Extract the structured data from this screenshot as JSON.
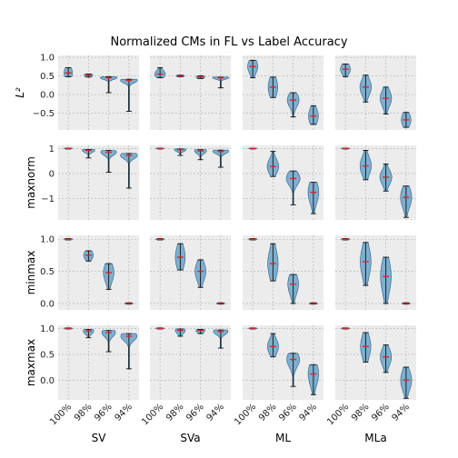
{
  "chart_data": {
    "type": "violin",
    "title": "Normalized CMs in FL vs Label Accuracy",
    "columns": [
      "SV",
      "SVa",
      "ML",
      "MLa"
    ],
    "categories": [
      "100%",
      "98%",
      "96%",
      "94%"
    ],
    "colors": {
      "violin_fill": "#5b9bc5",
      "violin_edge": "#2b5f86",
      "whisker": "#111111",
      "median": "#d62728",
      "panel_bg": "#ececec",
      "grid": "#b0b0b0"
    },
    "grid": true,
    "rows": [
      {
        "ylabel": "L²",
        "ylim": [
          -0.95,
          1.05
        ],
        "yticks": [
          1.0,
          0.5,
          0.0,
          -0.5
        ],
        "yticklabels": [
          "1.0",
          "0.5",
          "0.0",
          "−0.5"
        ],
        "panels": [
          [
            {
              "med": 0.58,
              "lo": 0.5,
              "hi": 0.72,
              "wmin": 0.48,
              "wmax": 0.72
            },
            {
              "med": 0.52,
              "lo": 0.48,
              "hi": 0.55,
              "wmin": 0.47,
              "wmax": 0.55
            },
            {
              "med": 0.45,
              "lo": 0.42,
              "hi": 0.48,
              "wmin": 0.05,
              "wmax": 0.48
            },
            {
              "med": 0.38,
              "lo": 0.35,
              "hi": 0.41,
              "wmin": -0.45,
              "wmax": 0.41
            }
          ],
          [
            {
              "med": 0.55,
              "lo": 0.48,
              "hi": 0.62,
              "wmin": 0.45,
              "wmax": 0.72
            },
            {
              "med": 0.5,
              "lo": 0.48,
              "hi": 0.52,
              "wmin": 0.48,
              "wmax": 0.52
            },
            {
              "med": 0.47,
              "lo": 0.44,
              "hi": 0.5,
              "wmin": 0.43,
              "wmax": 0.5
            },
            {
              "med": 0.45,
              "lo": 0.42,
              "hi": 0.47,
              "wmin": 0.18,
              "wmax": 0.47
            }
          ],
          [
            {
              "med": 0.75,
              "lo": 0.62,
              "hi": 0.88,
              "wmin": 0.45,
              "wmax": 0.92
            },
            {
              "med": 0.2,
              "lo": 0.05,
              "hi": 0.4,
              "wmin": -0.08,
              "wmax": 0.47
            },
            {
              "med": -0.15,
              "lo": -0.3,
              "hi": -0.05,
              "wmin": -0.6,
              "wmax": 0.05
            },
            {
              "med": -0.58,
              "lo": -0.72,
              "hi": -0.42,
              "wmin": -0.8,
              "wmax": -0.3
            }
          ],
          [
            {
              "med": 0.68,
              "lo": 0.58,
              "hi": 0.78,
              "wmin": 0.48,
              "wmax": 0.82
            },
            {
              "med": 0.2,
              "lo": 0.05,
              "hi": 0.35,
              "wmin": -0.2,
              "wmax": 0.52
            },
            {
              "med": -0.1,
              "lo": -0.25,
              "hi": 0.05,
              "wmin": -0.52,
              "wmax": 0.2
            },
            {
              "med": -0.68,
              "lo": -0.8,
              "hi": -0.55,
              "wmin": -0.88,
              "wmax": -0.48
            }
          ]
        ]
      },
      {
        "ylabel": "maxnorm",
        "ylim": [
          -1.85,
          1.12
        ],
        "yticks": [
          1,
          0,
          -1
        ],
        "yticklabels": [
          "1",
          "0",
          "−1"
        ],
        "panels": [
          [
            {
              "med": 1.0,
              "lo": 0.98,
              "hi": 1.01,
              "wmin": 0.98,
              "wmax": 1.01
            },
            {
              "med": 0.92,
              "lo": 0.85,
              "hi": 0.96,
              "wmin": 0.62,
              "wmax": 0.96
            },
            {
              "med": 0.85,
              "lo": 0.75,
              "hi": 0.92,
              "wmin": 0.05,
              "wmax": 0.92
            },
            {
              "med": 0.72,
              "lo": 0.62,
              "hi": 0.8,
              "wmin": -0.58,
              "wmax": 0.8
            }
          ],
          [
            {
              "med": 1.0,
              "lo": 0.98,
              "hi": 1.01,
              "wmin": 0.98,
              "wmax": 1.01
            },
            {
              "med": 0.95,
              "lo": 0.88,
              "hi": 0.98,
              "wmin": 0.72,
              "wmax": 0.98
            },
            {
              "med": 0.9,
              "lo": 0.8,
              "hi": 0.95,
              "wmin": 0.55,
              "wmax": 0.95
            },
            {
              "med": 0.88,
              "lo": 0.8,
              "hi": 0.93,
              "wmin": 0.25,
              "wmax": 0.93
            }
          ],
          [
            {
              "med": 1.0,
              "lo": 0.98,
              "hi": 1.01,
              "wmin": 0.98,
              "wmax": 1.01
            },
            {
              "med": 0.28,
              "lo": 0.1,
              "hi": 0.5,
              "wmin": -0.12,
              "wmax": 0.88
            },
            {
              "med": -0.2,
              "lo": -0.4,
              "hi": -0.05,
              "wmin": -1.25,
              "wmax": 0.1
            },
            {
              "med": -0.75,
              "lo": -1.05,
              "hi": -0.45,
              "wmin": -1.6,
              "wmax": -0.35
            }
          ],
          [
            {
              "med": 1.0,
              "lo": 0.98,
              "hi": 1.01,
              "wmin": 0.98,
              "wmax": 1.01
            },
            {
              "med": 0.3,
              "lo": 0.05,
              "hi": 0.55,
              "wmin": -0.25,
              "wmax": 0.92
            },
            {
              "med": -0.15,
              "lo": -0.35,
              "hi": 0.05,
              "wmin": -0.7,
              "wmax": 0.38
            },
            {
              "med": -0.95,
              "lo": -1.25,
              "hi": -0.7,
              "wmin": -1.75,
              "wmax": -0.5
            }
          ]
        ]
      },
      {
        "ylabel": "minmax",
        "ylim": [
          -0.1,
          1.06
        ],
        "yticks": [
          1.0,
          0.5,
          0.0
        ],
        "yticklabels": [
          "1.0",
          "0.5",
          "0.0"
        ],
        "panels": [
          [
            {
              "med": 1.0,
              "lo": 0.99,
              "hi": 1.01,
              "wmin": 0.99,
              "wmax": 1.01
            },
            {
              "med": 0.75,
              "lo": 0.7,
              "hi": 0.8,
              "wmin": 0.66,
              "wmax": 0.82
            },
            {
              "med": 0.48,
              "lo": 0.38,
              "hi": 0.58,
              "wmin": 0.22,
              "wmax": 0.62
            },
            {
              "med": 0.0,
              "lo": -0.01,
              "hi": 0.01,
              "wmin": -0.01,
              "wmax": 0.01
            }
          ],
          [
            {
              "med": 1.0,
              "lo": 0.99,
              "hi": 1.01,
              "wmin": 0.99,
              "wmax": 1.01
            },
            {
              "med": 0.72,
              "lo": 0.6,
              "hi": 0.84,
              "wmin": 0.52,
              "wmax": 0.93
            },
            {
              "med": 0.5,
              "lo": 0.4,
              "hi": 0.6,
              "wmin": 0.25,
              "wmax": 0.68
            },
            {
              "med": 0.0,
              "lo": -0.01,
              "hi": 0.01,
              "wmin": -0.01,
              "wmax": 0.01
            }
          ],
          [
            {
              "med": 1.0,
              "lo": 0.99,
              "hi": 1.01,
              "wmin": 0.99,
              "wmax": 1.01
            },
            {
              "med": 0.62,
              "lo": 0.48,
              "hi": 0.78,
              "wmin": 0.35,
              "wmax": 0.93
            },
            {
              "med": 0.3,
              "lo": 0.18,
              "hi": 0.4,
              "wmin": 0.0,
              "wmax": 0.45
            },
            {
              "med": 0.0,
              "lo": -0.01,
              "hi": 0.01,
              "wmin": -0.01,
              "wmax": 0.01
            }
          ],
          [
            {
              "med": 1.0,
              "lo": 0.99,
              "hi": 1.01,
              "wmin": 0.99,
              "wmax": 1.01
            },
            {
              "med": 0.65,
              "lo": 0.48,
              "hi": 0.8,
              "wmin": 0.28,
              "wmax": 0.95
            },
            {
              "med": 0.42,
              "lo": 0.25,
              "hi": 0.6,
              "wmin": 0.0,
              "wmax": 0.72
            },
            {
              "med": 0.0,
              "lo": -0.01,
              "hi": 0.01,
              "wmin": -0.01,
              "wmax": 0.01
            }
          ]
        ]
      },
      {
        "ylabel": "maxmax",
        "ylim": [
          -0.38,
          1.06
        ],
        "yticks": [
          1.0,
          0.5,
          0.0
        ],
        "yticklabels": [
          "1.0",
          "0.5",
          "0.0"
        ],
        "panels": [
          [
            {
              "med": 1.0,
              "lo": 0.99,
              "hi": 1.01,
              "wmin": 0.99,
              "wmax": 1.01
            },
            {
              "med": 0.95,
              "lo": 0.9,
              "hi": 0.98,
              "wmin": 0.82,
              "wmax": 0.98
            },
            {
              "med": 0.92,
              "lo": 0.85,
              "hi": 0.96,
              "wmin": 0.55,
              "wmax": 0.96
            },
            {
              "med": 0.85,
              "lo": 0.78,
              "hi": 0.9,
              "wmin": 0.22,
              "wmax": 0.9
            }
          ],
          [
            {
              "med": 1.0,
              "lo": 0.99,
              "hi": 1.01,
              "wmin": 0.99,
              "wmax": 1.01
            },
            {
              "med": 0.96,
              "lo": 0.91,
              "hi": 0.99,
              "wmin": 0.85,
              "wmax": 0.99
            },
            {
              "med": 0.96,
              "lo": 0.92,
              "hi": 0.98,
              "wmin": 0.9,
              "wmax": 0.98
            },
            {
              "med": 0.94,
              "lo": 0.89,
              "hi": 0.97,
              "wmin": 0.62,
              "wmax": 0.97
            }
          ],
          [
            {
              "med": 1.0,
              "lo": 0.99,
              "hi": 1.01,
              "wmin": 0.99,
              "wmax": 1.01
            },
            {
              "med": 0.65,
              "lo": 0.55,
              "hi": 0.75,
              "wmin": 0.45,
              "wmax": 0.9
            },
            {
              "med": 0.4,
              "lo": 0.3,
              "hi": 0.5,
              "wmin": -0.12,
              "wmax": 0.52
            },
            {
              "med": 0.12,
              "lo": -0.05,
              "hi": 0.25,
              "wmin": -0.28,
              "wmax": 0.3
            }
          ],
          [
            {
              "med": 1.0,
              "lo": 0.99,
              "hi": 1.01,
              "wmin": 0.99,
              "wmax": 1.01
            },
            {
              "med": 0.65,
              "lo": 0.5,
              "hi": 0.8,
              "wmin": 0.35,
              "wmax": 0.92
            },
            {
              "med": 0.45,
              "lo": 0.32,
              "hi": 0.55,
              "wmin": 0.15,
              "wmax": 0.68
            },
            {
              "med": 0.0,
              "lo": -0.15,
              "hi": 0.12,
              "wmin": -0.35,
              "wmax": 0.25
            }
          ]
        ]
      }
    ]
  }
}
